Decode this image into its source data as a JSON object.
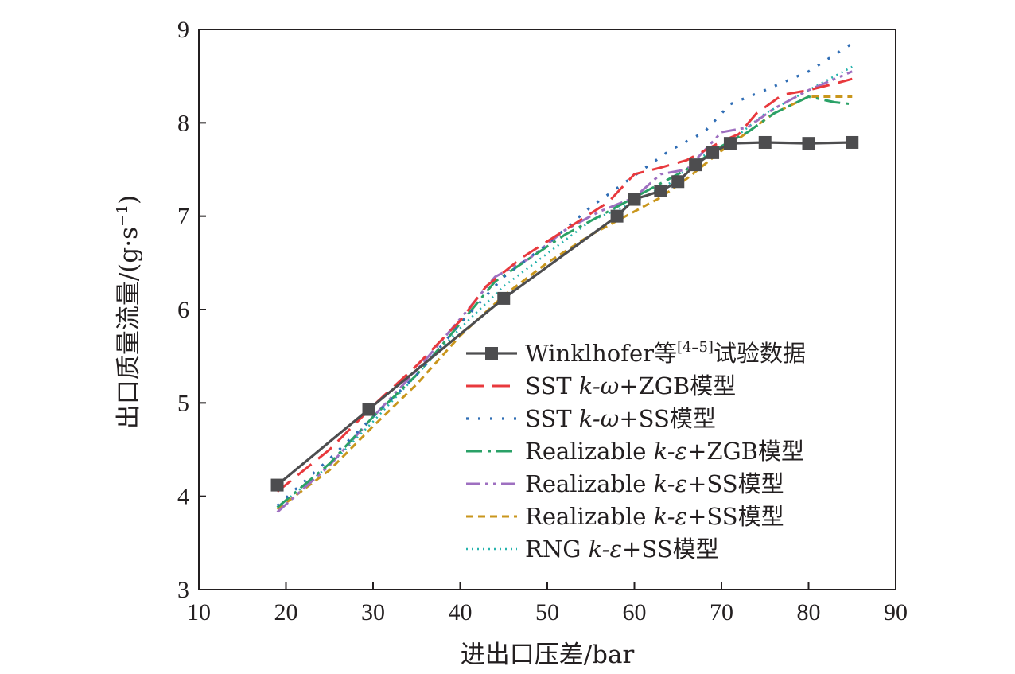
{
  "chart_data": {
    "type": "line",
    "xlabel": "进出口压差/bar",
    "ylabel": "出口质量流量/(g·s⁻¹)",
    "ylabel_main": "出口质量流量/(g",
    "ylabel_dot": "·",
    "ylabel_s": "s",
    "ylabel_sup": "−1",
    "ylabel_close": ")",
    "xlim": [
      10,
      90
    ],
    "ylim": [
      3,
      9
    ],
    "xticks": [
      10,
      20,
      30,
      40,
      50,
      60,
      70,
      80,
      90
    ],
    "yticks": [
      3,
      4,
      5,
      6,
      7,
      8,
      9
    ],
    "grid": false,
    "legend_position": "bottom-right",
    "series": [
      {
        "name": "Winklhofer等[4–5]试验数据",
        "name_main": "Winklhofer等",
        "name_sup": "[4–5]",
        "name_tail": "试验数据",
        "color": "#4d4d4f",
        "style": "solid-square",
        "points": [
          [
            19,
            4.12
          ],
          [
            29.5,
            4.93
          ],
          [
            45,
            6.12
          ],
          [
            58,
            7.0
          ],
          [
            60,
            7.18
          ],
          [
            63,
            7.27
          ],
          [
            65,
            7.37
          ],
          [
            67,
            7.55
          ],
          [
            69,
            7.68
          ],
          [
            71,
            7.78
          ],
          [
            75,
            7.79
          ],
          [
            80,
            7.78
          ],
          [
            85,
            7.79
          ]
        ]
      },
      {
        "name": "SST k-ω+ZGB模型",
        "name_main": "SST ",
        "name_italic": "k-ω",
        "name_tail": "+ZGB模型",
        "color": "#e8393d",
        "style": "dashed",
        "points": [
          [
            19,
            4.05
          ],
          [
            25,
            4.5
          ],
          [
            30,
            4.97
          ],
          [
            35,
            5.4
          ],
          [
            40,
            5.88
          ],
          [
            43,
            6.25
          ],
          [
            47,
            6.55
          ],
          [
            52,
            6.85
          ],
          [
            57,
            7.15
          ],
          [
            60,
            7.45
          ],
          [
            63,
            7.52
          ],
          [
            66,
            7.6
          ],
          [
            70,
            7.8
          ],
          [
            72,
            7.88
          ],
          [
            74,
            8.1
          ],
          [
            77,
            8.3
          ],
          [
            80,
            8.35
          ],
          [
            83,
            8.42
          ],
          [
            85,
            8.47
          ]
        ]
      },
      {
        "name": "SST k-ω+SS模型",
        "name_main": "SST ",
        "name_italic": "k-ω",
        "name_tail": "+SS模型",
        "color": "#2f6db5",
        "style": "dotted",
        "points": [
          [
            19,
            3.9
          ],
          [
            25,
            4.4
          ],
          [
            30,
            4.85
          ],
          [
            35,
            5.3
          ],
          [
            40,
            5.85
          ],
          [
            45,
            6.35
          ],
          [
            50,
            6.7
          ],
          [
            55,
            7.1
          ],
          [
            58,
            7.3
          ],
          [
            61,
            7.5
          ],
          [
            64,
            7.7
          ],
          [
            68,
            7.9
          ],
          [
            71,
            8.2
          ],
          [
            75,
            8.35
          ],
          [
            80,
            8.55
          ],
          [
            85,
            8.85
          ]
        ]
      },
      {
        "name": "Realizable k-ε+ZGB模型",
        "name_main": "Realizable ",
        "name_italic": "k-ε",
        "name_tail": "+ZGB模型",
        "color": "#2aa167",
        "style": "dash-dot",
        "points": [
          [
            19,
            3.88
          ],
          [
            25,
            4.35
          ],
          [
            30,
            4.85
          ],
          [
            35,
            5.3
          ],
          [
            40,
            5.85
          ],
          [
            44,
            6.3
          ],
          [
            48,
            6.55
          ],
          [
            52,
            6.8
          ],
          [
            57,
            7.05
          ],
          [
            60,
            7.2
          ],
          [
            63,
            7.35
          ],
          [
            66,
            7.5
          ],
          [
            70,
            7.75
          ],
          [
            73,
            7.9
          ],
          [
            76,
            8.1
          ],
          [
            80,
            8.28
          ],
          [
            83,
            8.22
          ],
          [
            85,
            8.2
          ]
        ]
      },
      {
        "name": "Realizable k-ε+SS模型",
        "name_main": "Realizable ",
        "name_italic": "k-ε",
        "name_tail": "+SS模型",
        "color": "#9e6fc0",
        "style": "dash-dot-dot",
        "points": [
          [
            19,
            3.83
          ],
          [
            25,
            4.33
          ],
          [
            30,
            4.85
          ],
          [
            35,
            5.35
          ],
          [
            40,
            5.9
          ],
          [
            44,
            6.35
          ],
          [
            48,
            6.55
          ],
          [
            52,
            6.85
          ],
          [
            56,
            7.05
          ],
          [
            60,
            7.2
          ],
          [
            63,
            7.45
          ],
          [
            66,
            7.5
          ],
          [
            70,
            7.9
          ],
          [
            73,
            7.95
          ],
          [
            76,
            8.15
          ],
          [
            80,
            8.35
          ],
          [
            85,
            8.55
          ]
        ]
      },
      {
        "name": "Realizable k-ε+SS模型",
        "name_main": "Realizable ",
        "name_italic": "k-ε",
        "name_tail": "+SS模型",
        "color": "#c9961c",
        "style": "short-dashed",
        "points": [
          [
            19,
            3.86
          ],
          [
            25,
            4.28
          ],
          [
            30,
            4.75
          ],
          [
            35,
            5.2
          ],
          [
            40,
            5.72
          ],
          [
            45,
            6.15
          ],
          [
            50,
            6.5
          ],
          [
            55,
            6.8
          ],
          [
            60,
            7.05
          ],
          [
            63,
            7.2
          ],
          [
            66,
            7.4
          ],
          [
            70,
            7.7
          ],
          [
            73,
            7.9
          ],
          [
            76,
            8.1
          ],
          [
            80,
            8.28
          ],
          [
            85,
            8.28
          ]
        ]
      },
      {
        "name": "RNG k-ε+SS模型",
        "name_main": "RNG ",
        "name_italic": "k-ε",
        "name_tail": "+SS模型",
        "color": "#26b3ad",
        "style": "fine-dotted",
        "points": [
          [
            19,
            3.88
          ],
          [
            25,
            4.33
          ],
          [
            30,
            4.8
          ],
          [
            35,
            5.3
          ],
          [
            40,
            5.8
          ],
          [
            45,
            6.25
          ],
          [
            50,
            6.6
          ],
          [
            55,
            6.95
          ],
          [
            60,
            7.15
          ],
          [
            64,
            7.35
          ],
          [
            68,
            7.65
          ],
          [
            71,
            7.8
          ],
          [
            75,
            8.1
          ],
          [
            80,
            8.35
          ],
          [
            85,
            8.6
          ]
        ]
      }
    ]
  }
}
